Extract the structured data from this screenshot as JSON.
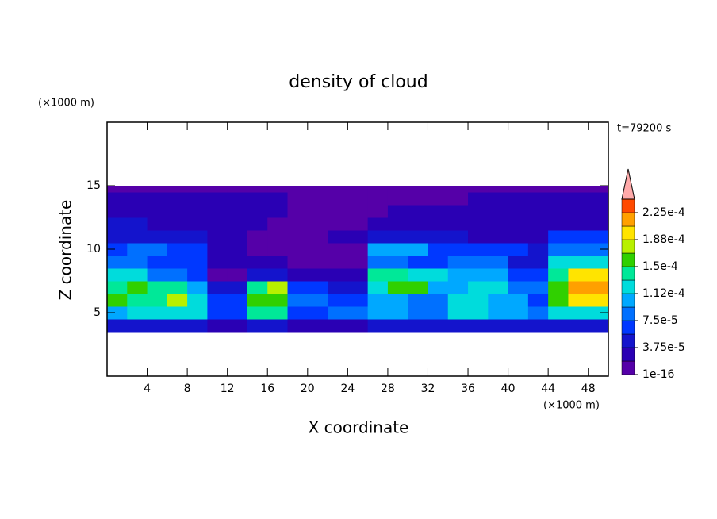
{
  "chart_data": {
    "type": "contourf",
    "title": "density of cloud",
    "x_unit": "(×1000 m)",
    "y_unit": "(×1000 m)",
    "time_label": "t=79200 s",
    "x_label": "X coordinate",
    "y_label": "Z coordinate",
    "xlim": [
      0,
      50
    ],
    "ylim": [
      0,
      20
    ],
    "xticks": [
      4,
      8,
      12,
      16,
      20,
      24,
      28,
      32,
      36,
      40,
      44,
      48
    ],
    "yticks": [
      5,
      10,
      15
    ],
    "x_edges": [
      0,
      2,
      4,
      6,
      8,
      10,
      12,
      14,
      16,
      18,
      20,
      22,
      24,
      26,
      28,
      30,
      32,
      34,
      36,
      38,
      40,
      42,
      44,
      46,
      48,
      50
    ],
    "z_edges": [
      3.5,
      4.5,
      5.5,
      6.5,
      7.5,
      8.5,
      9.5,
      10.5,
      11.5,
      12.5,
      13.5,
      14.5,
      15
    ],
    "values": [
      [
        4.7e-05,
        4.7e-05,
        4.7e-05,
        4.7e-05,
        4.7e-05,
        2.8e-05,
        2.8e-05,
        4.7e-05,
        4.7e-05,
        2.8e-05,
        2.8e-05,
        2.8e-05,
        2.8e-05,
        4.7e-05,
        4.7e-05,
        4.7e-05,
        4.7e-05,
        4.7e-05,
        4.7e-05,
        4.7e-05,
        4.7e-05,
        4.7e-05,
        4.7e-05,
        4.7e-05,
        4.7e-05
      ],
      [
        0.000103,
        0.000122,
        0.000122,
        0.000122,
        0.000122,
        6.6e-05,
        6.6e-05,
        0.00014,
        0.00014,
        6.6e-05,
        6.6e-05,
        8.4e-05,
        8.4e-05,
        0.000103,
        0.000103,
        8.4e-05,
        8.4e-05,
        0.000122,
        0.000122,
        0.000103,
        0.000103,
        8.4e-05,
        0.000122,
        0.000122,
        0.000122
      ],
      [
        0.00016,
        0.00014,
        0.00014,
        0.000178,
        0.000122,
        6.6e-05,
        6.6e-05,
        0.00016,
        0.00016,
        8.4e-05,
        8.4e-05,
        6.6e-05,
        6.6e-05,
        0.000103,
        0.000103,
        8.4e-05,
        8.4e-05,
        0.000122,
        0.000122,
        0.000103,
        0.000103,
        6.6e-05,
        0.00016,
        0.000197,
        0.000197
      ],
      [
        0.00014,
        0.00016,
        0.00014,
        0.00014,
        0.000103,
        4.7e-05,
        4.7e-05,
        0.00014,
        0.000178,
        6.6e-05,
        6.6e-05,
        4.7e-05,
        4.7e-05,
        0.000122,
        0.00016,
        0.00016,
        0.000103,
        0.000103,
        0.000122,
        0.000122,
        8.4e-05,
        8.4e-05,
        0.00016,
        0.000216,
        0.000216
      ],
      [
        0.000122,
        0.000122,
        8.4e-05,
        8.4e-05,
        6.6e-05,
        1e-05,
        1e-05,
        4.7e-05,
        4.7e-05,
        2.8e-05,
        2.8e-05,
        2.8e-05,
        2.8e-05,
        0.00014,
        0.00014,
        0.000122,
        0.000122,
        0.000103,
        0.000103,
        0.000103,
        6.6e-05,
        6.6e-05,
        0.00014,
        0.000197,
        0.000197
      ],
      [
        8.4e-05,
        8.4e-05,
        6.6e-05,
        6.6e-05,
        6.6e-05,
        2.8e-05,
        2.8e-05,
        2.8e-05,
        2.8e-05,
        1e-05,
        1e-05,
        1e-05,
        1e-05,
        8.4e-05,
        8.4e-05,
        6.6e-05,
        6.6e-05,
        8.4e-05,
        8.4e-05,
        8.4e-05,
        4.7e-05,
        4.7e-05,
        0.000122,
        0.000122,
        0.000122
      ],
      [
        6.6e-05,
        8.4e-05,
        8.4e-05,
        6.6e-05,
        6.6e-05,
        2.8e-05,
        2.8e-05,
        1e-05,
        1e-05,
        1e-05,
        1e-05,
        1e-05,
        1e-05,
        0.000103,
        0.000103,
        0.000103,
        6.6e-05,
        6.6e-05,
        6.6e-05,
        6.6e-05,
        6.6e-05,
        4.7e-05,
        8.4e-05,
        8.4e-05,
        8.4e-05
      ],
      [
        4.7e-05,
        4.7e-05,
        4.7e-05,
        4.7e-05,
        4.7e-05,
        2.8e-05,
        2.8e-05,
        1e-05,
        1e-05,
        1e-05,
        1e-05,
        2.8e-05,
        2.8e-05,
        4.7e-05,
        4.7e-05,
        4.7e-05,
        4.7e-05,
        4.7e-05,
        2.8e-05,
        2.8e-05,
        2.8e-05,
        2.8e-05,
        6.6e-05,
        6.6e-05,
        6.6e-05
      ],
      [
        4.7e-05,
        4.7e-05,
        2.8e-05,
        2.8e-05,
        2.8e-05,
        2.8e-05,
        2.8e-05,
        2.8e-05,
        1e-05,
        1e-05,
        1e-05,
        1e-05,
        1e-05,
        2.8e-05,
        2.8e-05,
        2.8e-05,
        2.8e-05,
        2.8e-05,
        2.8e-05,
        2.8e-05,
        2.8e-05,
        2.8e-05,
        2.8e-05,
        2.8e-05,
        2.8e-05
      ],
      [
        2.8e-05,
        2.8e-05,
        2.8e-05,
        2.8e-05,
        2.8e-05,
        2.8e-05,
        2.8e-05,
        2.8e-05,
        2.8e-05,
        1e-05,
        1e-05,
        1e-05,
        1e-05,
        1e-05,
        2.8e-05,
        2.8e-05,
        2.8e-05,
        2.8e-05,
        2.8e-05,
        2.8e-05,
        2.8e-05,
        2.8e-05,
        2.8e-05,
        2.8e-05,
        2.8e-05
      ],
      [
        2.8e-05,
        2.8e-05,
        2.8e-05,
        2.8e-05,
        2.8e-05,
        2.8e-05,
        2.8e-05,
        2.8e-05,
        2.8e-05,
        1e-05,
        1e-05,
        1e-05,
        1e-05,
        1e-05,
        1e-05,
        1e-05,
        1e-05,
        1e-05,
        2.8e-05,
        2.8e-05,
        2.8e-05,
        2.8e-05,
        2.8e-05,
        2.8e-05,
        2.8e-05
      ],
      [
        1e-05,
        1e-05,
        1e-05,
        1e-05,
        1e-05,
        1e-05,
        1e-05,
        1e-05,
        1e-05,
        1e-05,
        1e-05,
        1e-05,
        1e-05,
        1e-05,
        1e-05,
        1e-05,
        1e-05,
        1e-05,
        1e-05,
        1e-05,
        1e-05,
        1e-05,
        1e-05,
        1e-05,
        1e-05
      ]
    ],
    "levels": [
      1e-16,
      1.875e-05,
      3.75e-05,
      5.625e-05,
      7.5e-05,
      9.375e-05,
      0.0001125,
      0.00013125,
      0.00015,
      0.00016875,
      0.0001875,
      0.00020625,
      0.000225,
      0.00024375
    ],
    "colors": [
      "#5500a8",
      "#2a00b4",
      "#1414cc",
      "#0038ff",
      "#0070ff",
      "#00a8ff",
      "#00dcdc",
      "#00e898",
      "#30d000",
      "#b8f000",
      "#ffe400",
      "#ffa000",
      "#ff4a00"
    ],
    "extend_color": "#ffaaaa",
    "cticks": [
      1e-16,
      {
        "value": 3.75e-05,
        "label": "3.75e-5"
      },
      {
        "value": 7.5e-05,
        "label": "7.5e-5"
      },
      {
        "value": 0.0001125,
        "label": "1.12e-4"
      },
      {
        "value": 0.00015,
        "label": "1.5e-4"
      },
      {
        "value": 0.0001875,
        "label": "1.88e-4"
      },
      {
        "value": 0.000225,
        "label": "2.25e-4"
      }
    ]
  }
}
